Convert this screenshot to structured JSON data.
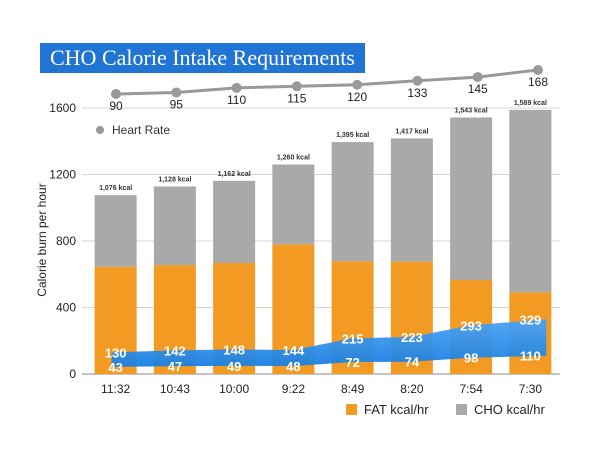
{
  "chart_data": {
    "type": "bar",
    "title": "CHO Calorie Intake Requirements",
    "ylabel": "Calorie burn per hour",
    "xlabel": "",
    "ylim": [
      0,
      1600
    ],
    "yticks": [
      0,
      400,
      800,
      1200,
      1600
    ],
    "grid": true,
    "categories": [
      "11:32",
      "10:43",
      "10:00",
      "9:22",
      "8:49",
      "8:20",
      "7:54",
      "7:30"
    ],
    "stacked": true,
    "series": [
      {
        "name": "FAT kcal/hr",
        "color": "#f39a23",
        "values": [
          645,
          655,
          668,
          780,
          678,
          676,
          565,
          491
        ]
      },
      {
        "name": "CHO kcal/hr",
        "color": "#a9a9a9",
        "values": [
          431,
          473,
          494,
          480,
          717,
          741,
          978,
          1098
        ]
      }
    ],
    "total_labels": [
      "1,076 kcal",
      "1,128 kcal",
      "1,162 kcal",
      "1,260 kcal",
      "1,395 kcal",
      "1,417 kcal",
      "1,543 kcal",
      "1,589 kcal"
    ],
    "heart_rate": {
      "name": "Heart Rate",
      "color": "#999999",
      "values": [
        90,
        95,
        110,
        115,
        120,
        133,
        145,
        168
      ]
    },
    "band": {
      "color": "#1a7fe0",
      "upper_labels": [
        "130",
        "142",
        "148",
        "144",
        "215",
        "223",
        "293",
        "329"
      ],
      "lower_labels": [
        "43",
        "47",
        "49",
        "48",
        "72",
        "74",
        "98",
        "110"
      ]
    },
    "legend": {
      "placement": "bottom-right",
      "items": [
        {
          "label": "FAT kcal/hr",
          "color": "#f39a23"
        },
        {
          "label": "CHO kcal/hr",
          "color": "#a9a9a9"
        }
      ]
    }
  }
}
